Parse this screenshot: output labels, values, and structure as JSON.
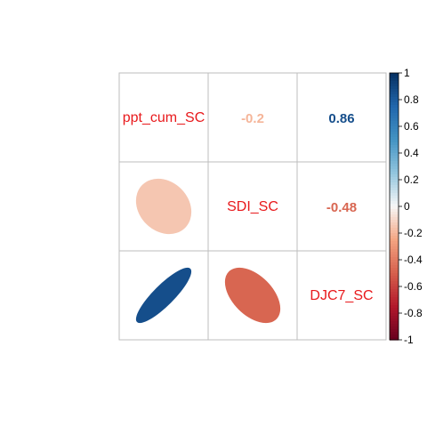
{
  "chart_data": {
    "type": "heatmap",
    "variables": [
      "ppt_cum_SC",
      "SDI_SC",
      "DJC7_SC"
    ],
    "correlations": [
      [
        1,
        -0.2,
        0.86
      ],
      [
        -0.2,
        1,
        -0.48
      ],
      [
        0.86,
        -0.48,
        1
      ]
    ],
    "upper_labels": [
      "-0.2",
      "0.86",
      "-0.48"
    ],
    "colorbar": {
      "range": [
        -1,
        1
      ],
      "tick_labels": [
        "1",
        "0.8",
        "0.6",
        "0.4",
        "0.2",
        "0",
        "-0.2",
        "-0.4",
        "-0.6",
        "-0.8",
        "-1"
      ]
    },
    "lower_display": "ellipse",
    "upper_display": "number",
    "diagonal_label_color": "#e8191c",
    "grid": true
  }
}
